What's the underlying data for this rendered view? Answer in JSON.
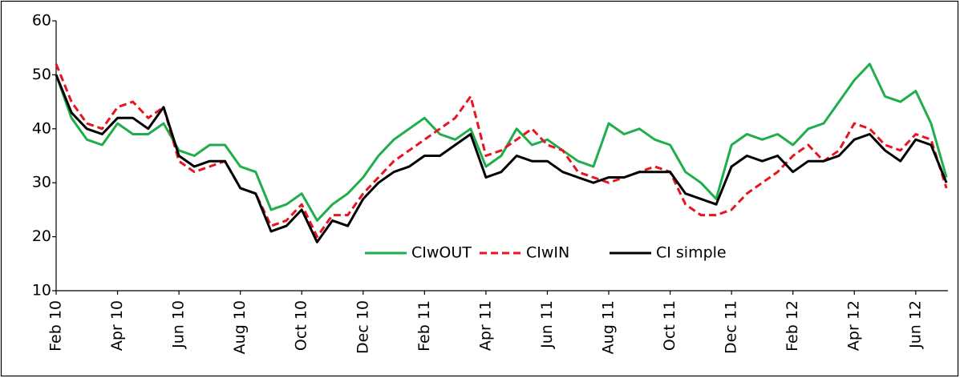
{
  "chart_data": {
    "type": "line",
    "categories": [
      "Feb 10",
      null,
      null,
      null,
      "Apr 10",
      null,
      null,
      null,
      "Jun 10",
      null,
      null,
      null,
      "Aug 10",
      null,
      null,
      null,
      "Oct 10",
      null,
      null,
      null,
      "Dec 10",
      null,
      null,
      null,
      "Feb 11",
      null,
      null,
      null,
      "Apr 11",
      null,
      null,
      null,
      "Jun 11",
      null,
      null,
      null,
      "Aug 11",
      null,
      null,
      null,
      "Oct 11",
      null,
      null,
      null,
      "Dec 11",
      null,
      null,
      null,
      "Feb 12",
      null,
      null,
      null,
      "Apr 12",
      null,
      null,
      null,
      "Jun 12",
      null,
      null
    ],
    "series": [
      {
        "name": "CIwOUT",
        "color": "#1fae4b",
        "dash": false,
        "values": [
          50,
          42,
          38,
          37,
          41,
          39,
          39,
          41,
          36,
          35,
          37,
          37,
          33,
          32,
          25,
          26,
          28,
          23,
          26,
          28,
          31,
          35,
          38,
          40,
          42,
          39,
          38,
          40,
          33,
          35,
          40,
          37,
          38,
          36,
          34,
          33,
          41,
          39,
          40,
          38,
          37,
          32,
          30,
          27,
          37,
          39,
          38,
          39,
          37,
          40,
          41,
          45,
          49,
          52,
          46,
          45,
          47,
          41,
          31
        ]
      },
      {
        "name": "CIwIN",
        "color": "#e8141e",
        "dash": true,
        "values": [
          52,
          45,
          41,
          40,
          44,
          45,
          42,
          44,
          34,
          32,
          33,
          34,
          29,
          28,
          22,
          23,
          26,
          20,
          24,
          24,
          28,
          31,
          34,
          36,
          38,
          40,
          42,
          46,
          35,
          36,
          38,
          40,
          37,
          36,
          32,
          31,
          30,
          31,
          32,
          33,
          32,
          26,
          24,
          24,
          25,
          28,
          30,
          32,
          35,
          37,
          34,
          36,
          41,
          40,
          37,
          36,
          39,
          38,
          29
        ]
      },
      {
        "name": "CI simple",
        "color": "#000000",
        "dash": false,
        "values": [
          50,
          43,
          40,
          39,
          42,
          42,
          40,
          44,
          35,
          33,
          34,
          34,
          29,
          28,
          21,
          22,
          25,
          19,
          23,
          22,
          27,
          30,
          32,
          33,
          35,
          35,
          37,
          39,
          31,
          32,
          35,
          34,
          34,
          32,
          31,
          30,
          31,
          31,
          32,
          32,
          32,
          28,
          27,
          26,
          33,
          35,
          34,
          35,
          32,
          34,
          34,
          35,
          38,
          39,
          36,
          34,
          38,
          37,
          30
        ]
      }
    ],
    "ylim": [
      10,
      60
    ],
    "yticks": [
      10,
      20,
      30,
      40,
      50,
      60
    ],
    "grid": false
  }
}
